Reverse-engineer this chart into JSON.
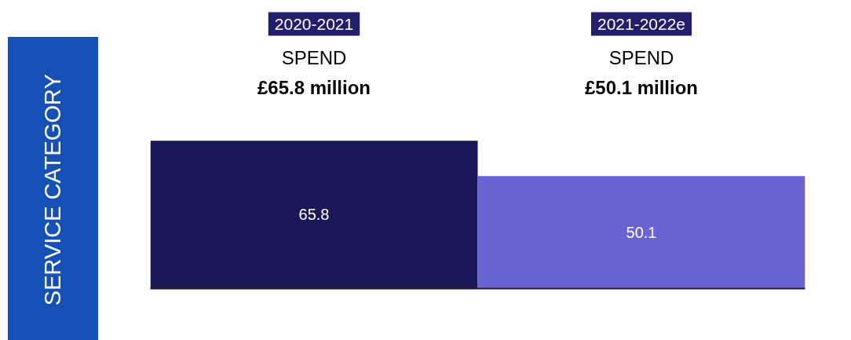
{
  "chart_data": {
    "type": "bar",
    "ylabel": "SERVICE CATEGORY",
    "categories": [
      "2020-2021",
      "2021-2022e"
    ],
    "values": [
      65.8,
      50.1
    ],
    "colors": [
      "#1b1858",
      "#6a63d4"
    ],
    "data_labels": true,
    "annotations": [
      "SPEND",
      "£65.8 million",
      "SPEND",
      "£50.1 million"
    ]
  }
}
